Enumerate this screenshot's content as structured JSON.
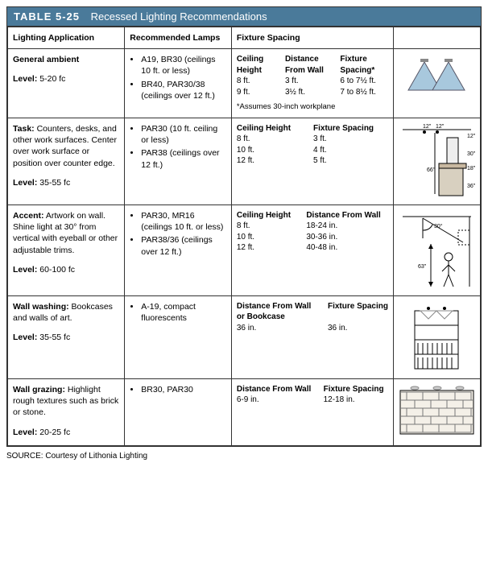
{
  "table_number": "TABLE 5-25",
  "table_title": "Recessed Lighting Recommendations",
  "headers": {
    "c1": "Lighting Application",
    "c2": "Recommended Lamps",
    "c3": "Fixture Spacing",
    "c4": ""
  },
  "rows": [
    {
      "app_title": "General ambient",
      "app_body": "",
      "level_label": "Level:",
      "level_value": "5-20 fc",
      "lamps": [
        "A19, BR30 (ceilings 10 ft. or less)",
        "BR40, PAR30/38 (ceilings over 12 ft.)"
      ],
      "spacing": {
        "cols": [
          "Ceiling Height",
          "Distance From Wall",
          "Fixture Spacing*"
        ],
        "data": [
          [
            "8 ft.",
            "3 ft.",
            "6 to 7½ ft."
          ],
          [
            "9 ft.",
            "3½ ft.",
            "7 to 8½ ft."
          ]
        ],
        "note": "*Assumes 30-inch workplane"
      },
      "diagram": "cones"
    },
    {
      "app_title": "Task:",
      "app_body": "Counters, desks, and other work surfaces. Center over work surface or position over counter edge.",
      "level_label": "Level:",
      "level_value": "35-55 fc",
      "lamps": [
        "PAR30 (10 ft. ceiling or less)",
        "PAR38 (ceilings over 12 ft.)"
      ],
      "spacing": {
        "cols": [
          "Ceiling Height",
          "Fixture Spacing"
        ],
        "data": [
          [
            "8 ft.",
            "3 ft."
          ],
          [
            "10 ft.",
            "4 ft."
          ],
          [
            "12 ft.",
            "5 ft."
          ]
        ]
      },
      "diagram": "task",
      "dims": {
        "a": "12\"",
        "b": "12\"",
        "c": "12\"",
        "d": "30\"",
        "e": "18\"",
        "f": "36\"",
        "g": "66\""
      }
    },
    {
      "app_title": "Accent:",
      "app_body": "Artwork on wall. Shine light at 30° from vertical with eyeball or other adjustable trims.",
      "level_label": "Level:",
      "level_value": "60-100 fc",
      "lamps": [
        "PAR30, MR16 (ceilings 10 ft. or less)",
        "PAR38/36 (ceilings over 12 ft.)"
      ],
      "spacing": {
        "cols": [
          "Ceiling Height",
          "Distance From Wall"
        ],
        "data": [
          [
            "8 ft.",
            "18-24 in."
          ],
          [
            "10 ft.",
            "30-36 in."
          ],
          [
            "12 ft.",
            "40-48 in."
          ]
        ]
      },
      "diagram": "accent",
      "dims": {
        "angle": "30°",
        "h": "63\""
      }
    },
    {
      "app_title": "Wall washing:",
      "app_body": "Bookcases and walls of art.",
      "level_label": "Level:",
      "level_value": "35-55 fc",
      "lamps": [
        "A-19, compact fluorescents"
      ],
      "spacing": {
        "cols": [
          "Distance From Wall or Bookcase",
          "Fixture Spacing"
        ],
        "data": [
          [
            "36 in.",
            "36 in."
          ]
        ]
      },
      "diagram": "bookcase"
    },
    {
      "app_title": "Wall grazing:",
      "app_body": "Highlight rough textures such as brick or stone.",
      "level_label": "Level:",
      "level_value": "20-25 fc",
      "lamps": [
        "BR30, PAR30"
      ],
      "spacing": {
        "cols": [
          "Distance From Wall",
          "Fixture Spacing"
        ],
        "data": [
          [
            "6-9 in.",
            "12-18 in."
          ]
        ]
      },
      "diagram": "brick"
    }
  ],
  "source_label": "SOURCE:",
  "source_text": "Courtesy of Lithonia Lighting",
  "colors": {
    "header_bg": "#4a7a9a",
    "border": "#333333",
    "cone_fill": "#a8c8dd"
  }
}
